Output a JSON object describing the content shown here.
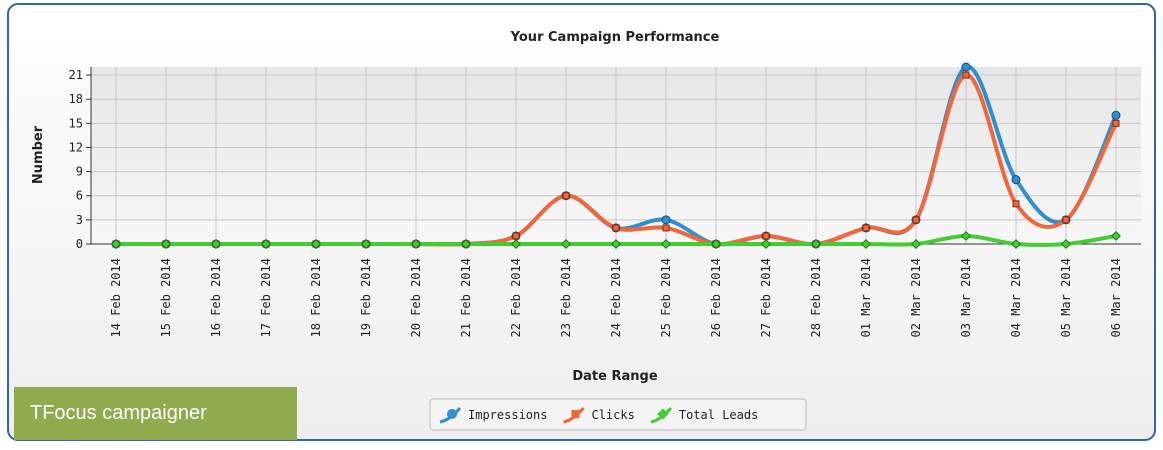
{
  "chart_data": {
    "type": "line",
    "title": "Your Campaign Performance",
    "x_label": "Date Range",
    "y_label": "Number",
    "annotation": "TFocus campaigner",
    "categories": [
      "14 Feb 2014",
      "15 Feb 2014",
      "16 Feb 2014",
      "17 Feb 2014",
      "18 Feb 2014",
      "19 Feb 2014",
      "20 Feb 2014",
      "21 Feb 2014",
      "22 Feb 2014",
      "23 Feb 2014",
      "24 Feb 2014",
      "25 Feb 2014",
      "26 Feb 2014",
      "27 Feb 2014",
      "28 Feb 2014",
      "01 Mar 2014",
      "02 Mar 2014",
      "03 Mar 2014",
      "04 Mar 2014",
      "05 Mar 2014",
      "06 Mar 2014"
    ],
    "series": [
      {
        "name": "Impressions",
        "color": "#2f8fd1",
        "values": [
          0,
          0,
          0,
          0,
          0,
          0,
          0,
          0,
          1,
          6,
          2,
          3,
          0,
          1,
          0,
          2,
          3,
          22,
          8,
          3,
          16
        ]
      },
      {
        "name": "Clicks",
        "color": "#f0683a",
        "values": [
          0,
          0,
          0,
          0,
          0,
          0,
          0,
          0,
          1,
          6,
          2,
          2,
          0,
          1,
          0,
          2,
          3,
          21,
          5,
          3,
          15
        ]
      },
      {
        "name": "Total Leads",
        "color": "#44cc33",
        "values": [
          0,
          0,
          0,
          0,
          0,
          0,
          0,
          0,
          0,
          0,
          0,
          0,
          0,
          0,
          0,
          0,
          0,
          1,
          0,
          0,
          1
        ]
      }
    ],
    "ylim": [
      0,
      22
    ],
    "yticks": [
      0,
      3,
      6,
      9,
      12,
      15,
      18,
      21
    ],
    "grid": true,
    "legend": "bottom"
  }
}
